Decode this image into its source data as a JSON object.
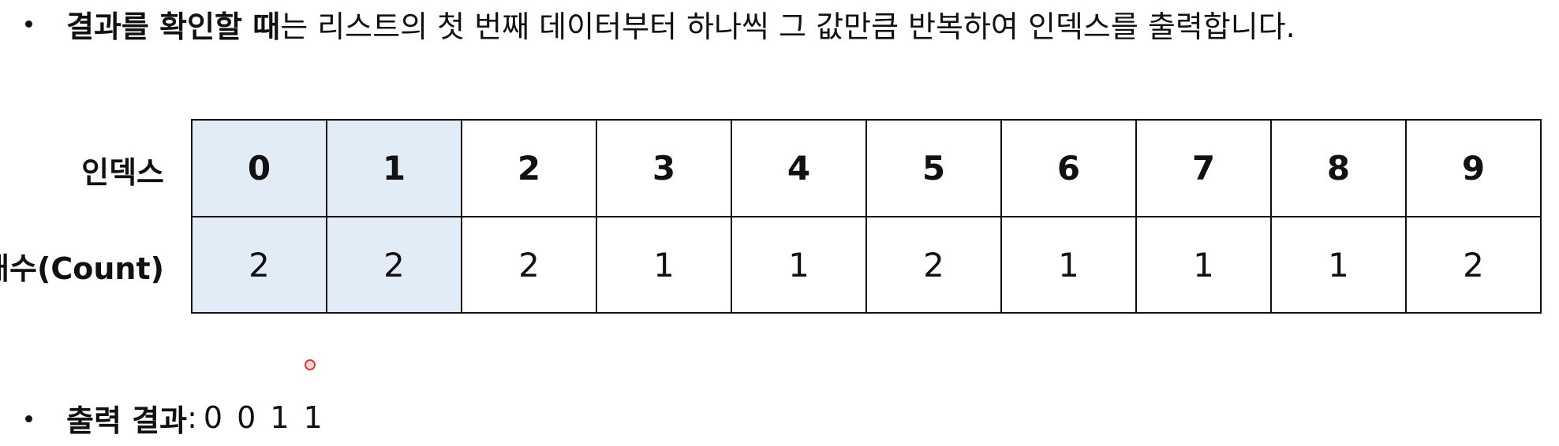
{
  "intro": {
    "bold_text": "결과를 확인할 때",
    "text": "는 리스트의 첫 번째 데이터부터 하나씩 그 값만큼 반복하여 인덱스를 출력합니다."
  },
  "table": {
    "index_label": "인덱스",
    "count_label": "개수(Count)",
    "indices": [
      "0",
      "1",
      "2",
      "3",
      "4",
      "5",
      "6",
      "7",
      "8",
      "9"
    ],
    "counts": [
      "2",
      "2",
      "2",
      "1",
      "1",
      "2",
      "1",
      "1",
      "1",
      "2"
    ],
    "highlighted_columns": [
      0,
      1
    ],
    "highlight_color": "#e1ecf7"
  },
  "output": {
    "label": "출력 결과",
    "separator": ":",
    "values": "0 0 1 1"
  },
  "colors": {
    "text": "#111111",
    "pointer": "#e53935"
  }
}
